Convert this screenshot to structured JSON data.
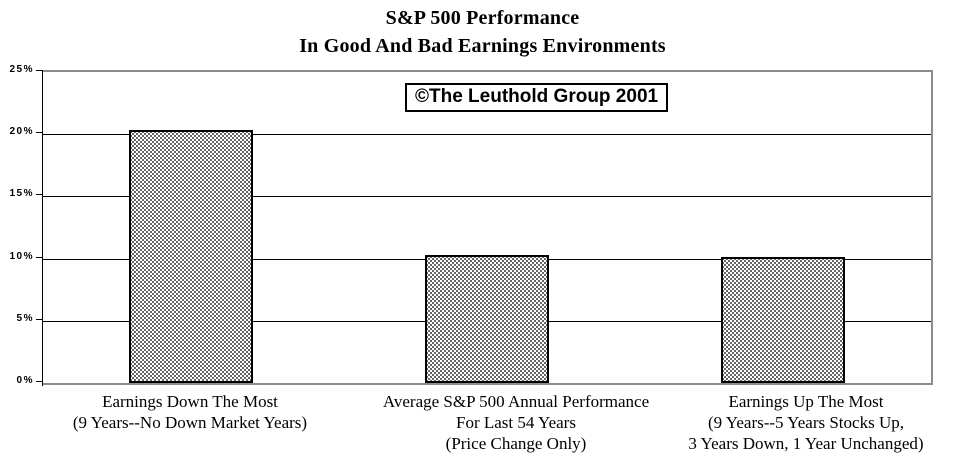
{
  "title": {
    "line1": "S&P 500 Performance",
    "line2": "In Good And Bad Earnings Environments"
  },
  "annotation_box": {
    "text": "©The Leuthold Group 2001"
  },
  "colors": {
    "background": "#ffffff",
    "text": "#000000",
    "plot_border": "#8c8c8c",
    "bar_border": "#000000",
    "bar_fill": "dot-stipple-black-on-white",
    "gridline": "#000000"
  },
  "chart_data": {
    "type": "bar",
    "title": "S&P 500 Performance In Good And Bad Earnings Environments",
    "annotation": "©The Leuthold Group 2001",
    "categories": [
      [
        "Earnings Down The Most",
        "(9 Years--No Down Market Years)"
      ],
      [
        "Average S&P 500 Annual Performance",
        "For Last 54 Years",
        "(Price Change Only)"
      ],
      [
        "Earnings Up The Most",
        "(9 Years--5 Years Stocks Up,",
        "3 Years Down, 1 Year Unchanged)"
      ]
    ],
    "values": [
      20.3,
      10.3,
      10.1
    ],
    "xlabel": "",
    "ylabel": "",
    "ylim": [
      0,
      25
    ],
    "ytick_interval": 5,
    "ytick_labels": [
      "0%",
      "5%",
      "10%",
      "15%",
      "20%",
      "25%"
    ],
    "grid": true,
    "legend": false,
    "bar_pattern": "dotted stipple, black outline"
  }
}
